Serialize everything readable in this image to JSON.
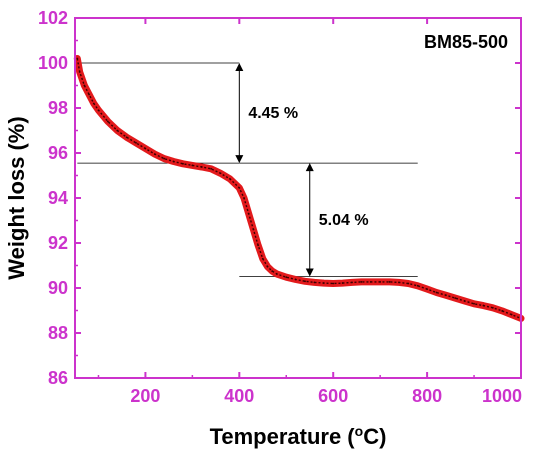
{
  "chart_data": {
    "type": "line",
    "sample_label": "BM85-500",
    "xlabel": "Temperature (",
    "xlabel_sup": "o",
    "xlabel_unit": "C)",
    "ylabel": "Weight loss (%)",
    "xlim": [
      50,
      1000
    ],
    "ylim": [
      86,
      102
    ],
    "x_ticks": [
      200,
      400,
      600,
      800,
      1000
    ],
    "y_ticks": [
      86,
      88,
      90,
      92,
      94,
      96,
      98,
      100,
      102
    ],
    "grid": false,
    "colors": {
      "line": "#e31a1c",
      "line_core": "#3a0000",
      "axis": "#cc33cc",
      "ticks_text": "#cc33cc",
      "annotation": "#000000"
    },
    "series": [
      {
        "x": [
          55,
          60,
          70,
          80,
          90,
          100,
          120,
          140,
          160,
          180,
          200,
          220,
          240,
          260,
          280,
          300,
          320,
          340,
          360,
          380,
          400,
          410,
          420,
          430,
          440,
          450,
          460,
          470,
          480,
          500,
          520,
          540,
          560,
          580,
          600,
          620,
          640,
          660,
          680,
          700,
          720,
          740,
          760,
          780,
          800,
          820,
          840,
          860,
          880,
          900,
          920,
          940,
          960,
          980,
          1000
        ],
        "y": [
          100.2,
          99.6,
          99.0,
          98.6,
          98.2,
          97.9,
          97.4,
          97.0,
          96.7,
          96.45,
          96.2,
          95.95,
          95.75,
          95.62,
          95.52,
          95.45,
          95.38,
          95.3,
          95.1,
          94.85,
          94.45,
          94.0,
          93.3,
          92.6,
          91.9,
          91.3,
          90.95,
          90.75,
          90.62,
          90.48,
          90.38,
          90.3,
          90.25,
          90.22,
          90.2,
          90.22,
          90.25,
          90.27,
          90.27,
          90.27,
          90.27,
          90.25,
          90.2,
          90.1,
          89.95,
          89.8,
          89.68,
          89.55,
          89.42,
          89.3,
          89.22,
          89.12,
          88.98,
          88.82,
          88.65
        ]
      }
    ],
    "annotations": [
      {
        "label": "4.45 %",
        "x": 400,
        "y_top": 100.0,
        "y_bottom": 95.55,
        "line_from_x": 55,
        "line_to_x": 400
      },
      {
        "label": "5.04 %",
        "x": 550,
        "y_top": 95.55,
        "y_bottom": 90.51,
        "line_from_x": 400,
        "line_to_x": 780
      }
    ]
  }
}
